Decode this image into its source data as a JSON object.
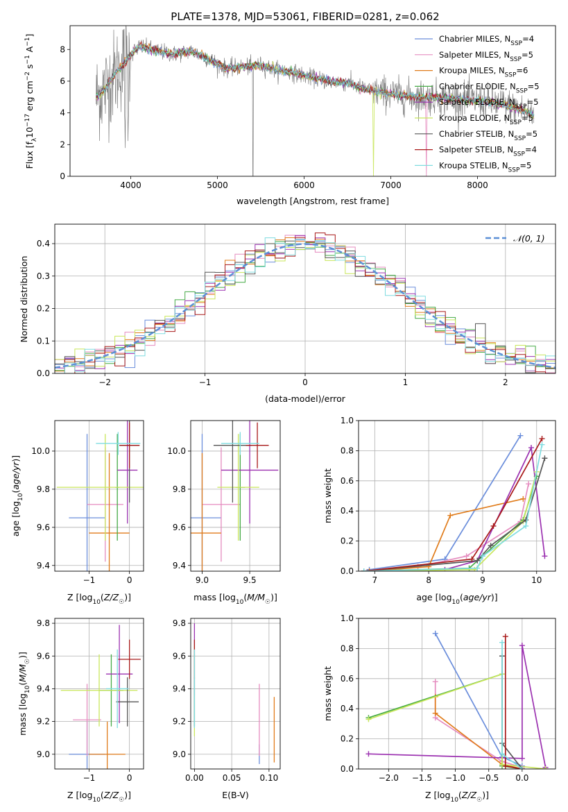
{
  "figure": {
    "title": "PLATE=1378, MJD=53061, FIBERID=0281, z=0.062"
  },
  "colors": {
    "Chabrier MILES": "#6a8ddb",
    "Salpeter MILES": "#e58bbf",
    "Kroupa MILES": "#e07b1a",
    "Chabrier ELODIE": "#44aa44",
    "Salpeter ELODIE": "#9b30b0",
    "Kroupa ELODIE": "#c8e65a",
    "Chabrier STELIB": "#555555",
    "Salpeter STELIB": "#a81818",
    "Kroupa STELIB": "#7fdce0",
    "data": "#808080",
    "normal": "#5b8fd6"
  },
  "chart_data": [
    {
      "id": "spectrum",
      "type": "line",
      "xlabel": "wavelength [Angstrom, rest frame]",
      "ylabel": "Flux [f_λ10^-17 erg cm^-2 s^-1 A^-1]",
      "xlim": [
        3300,
        8900
      ],
      "ylim": [
        0,
        9.5
      ],
      "xticks": [
        4000,
        5000,
        6000,
        7000,
        8000
      ],
      "yticks": [
        0,
        2,
        4,
        6,
        8
      ],
      "grid": false,
      "legend": {
        "position": "top-right",
        "entries": [
          {
            "label": "Chabrier MILES, N",
            "sub": "SSP",
            "suffix": "=4",
            "model": "Chabrier MILES"
          },
          {
            "label": "Salpeter MILES, N",
            "sub": "SSP",
            "suffix": "=5",
            "model": "Salpeter MILES"
          },
          {
            "label": "Kroupa MILES, N",
            "sub": "SSP",
            "suffix": "=6",
            "model": "Kroupa MILES"
          },
          {
            "label": "Chabrier ELODIE, N",
            "sub": "SSP",
            "suffix": "=5",
            "model": "Chabrier ELODIE"
          },
          {
            "label": "Salpeter ELODIE, N",
            "sub": "SSP",
            "suffix": "=5",
            "model": "Salpeter ELODIE"
          },
          {
            "label": "Kroupa ELODIE, N",
            "sub": "SSP",
            "suffix": "=5",
            "model": "Kroupa ELODIE"
          },
          {
            "label": "Chabrier STELIB, N",
            "sub": "SSP",
            "suffix": "=5",
            "model": "Chabrier STELIB"
          },
          {
            "label": "Salpeter STELIB, N",
            "sub": "SSP",
            "suffix": "=4",
            "model": "Salpeter STELIB"
          },
          {
            "label": "Kroupa STELIB, N",
            "sub": "SSP",
            "suffix": "=5",
            "model": "Kroupa STELIB"
          }
        ]
      },
      "continuum": {
        "x": [
          3600,
          3700,
          3800,
          3900,
          4000,
          4100,
          4300,
          4500,
          4700,
          4900,
          5100,
          5300,
          5500,
          5700,
          5900,
          6100,
          6300,
          6500,
          6700,
          6900,
          7100,
          7300,
          7500,
          7700,
          7900,
          8100,
          8300,
          8500,
          8650
        ],
        "y": [
          5.0,
          5.5,
          6.3,
          7.0,
          7.7,
          8.2,
          7.9,
          7.7,
          7.9,
          7.4,
          6.8,
          6.9,
          7.0,
          6.7,
          6.5,
          6.2,
          6.0,
          5.9,
          5.5,
          5.3,
          5.1,
          5.0,
          5.0,
          4.9,
          4.8,
          4.7,
          4.5,
          4.2,
          3.8
        ]
      }
    },
    {
      "id": "residuals",
      "type": "histogram",
      "xlabel": "(data-model)/error",
      "ylabel": "Normed distribution",
      "xlim": [
        -2.5,
        2.5
      ],
      "ylim": [
        0,
        0.46
      ],
      "xticks": [
        -2,
        -1,
        0,
        1,
        2
      ],
      "yticks": [
        0.0,
        0.1,
        0.2,
        0.3,
        0.4
      ],
      "grid": true,
      "legend": {
        "position": "top-right",
        "label": "𝒩(0, 1)"
      },
      "bin_width": 0.1,
      "curve": "normal(0,1)"
    },
    {
      "id": "z-age",
      "type": "errorbar",
      "xlabel": "Z [log10(Z/Z☉)]",
      "ylabel": "age  [log10(age/yr)]",
      "xlim": [
        -1.85,
        0.35
      ],
      "ylim": [
        9.37,
        10.16
      ],
      "xticks": [
        -1,
        0
      ],
      "yticks": [
        9.4,
        9.6,
        9.8,
        10.0
      ],
      "grid": true,
      "series": [
        {
          "model": "Chabrier MILES",
          "x": -1.05,
          "xerr": 0.45,
          "y": 9.65,
          "yerr": 0.44
        },
        {
          "model": "Salpeter MILES",
          "x": -0.6,
          "xerr": 0.45,
          "y": 9.72,
          "yerr": 0.3
        },
        {
          "model": "Kroupa MILES",
          "x": -0.5,
          "xerr": 0.5,
          "y": 9.57,
          "yerr": 0.42
        },
        {
          "model": "Chabrier ELODIE",
          "x": -0.3,
          "xerr": 0.05,
          "y": 9.81,
          "yerr": 0.28
        },
        {
          "model": "Salpeter ELODIE",
          "x": -0.05,
          "xerr": 0.25,
          "y": 9.9,
          "yerr": 0.28
        },
        {
          "model": "Kroupa ELODIE",
          "x": -0.6,
          "xerr": 1.2,
          "y": 9.81,
          "yerr": 0.28
        },
        {
          "model": "Chabrier STELIB",
          "x": 0.0,
          "xerr": 0.25,
          "y": 10.03,
          "yerr": 0.3
        },
        {
          "model": "Salpeter STELIB",
          "x": 0.0,
          "xerr": 0.25,
          "y": 10.03,
          "yerr": 0.12
        },
        {
          "model": "Kroupa STELIB",
          "x": -0.28,
          "xerr": 0.55,
          "y": 10.04,
          "yerr": 0.06
        }
      ]
    },
    {
      "id": "mass-age",
      "type": "errorbar",
      "xlabel": "mass [log10(M/M☉)]",
      "ylabel": "",
      "xlim": [
        8.88,
        9.82
      ],
      "ylim": [
        9.37,
        10.16
      ],
      "xticks": [
        9.0,
        9.5
      ],
      "yticks": [
        9.4,
        9.6,
        9.8,
        10.0
      ],
      "grid": true,
      "series": [
        {
          "model": "Chabrier MILES",
          "x": 9.0,
          "xerr": 0.2,
          "y": 9.65,
          "yerr": 0.44
        },
        {
          "model": "Salpeter MILES",
          "x": 9.2,
          "xerr": 0.2,
          "y": 9.72,
          "yerr": 0.3
        },
        {
          "model": "Kroupa MILES",
          "x": 9.0,
          "xerr": 0.2,
          "y": 9.57,
          "yerr": 0.42
        },
        {
          "model": "Chabrier ELODIE",
          "x": 9.4,
          "xerr": 0.05,
          "y": 9.81,
          "yerr": 0.28
        },
        {
          "model": "Salpeter ELODIE",
          "x": 9.5,
          "xerr": 0.3,
          "y": 9.9,
          "yerr": 0.28
        },
        {
          "model": "Kroupa ELODIE",
          "x": 9.38,
          "xerr": 0.22,
          "y": 9.81,
          "yerr": 0.28
        },
        {
          "model": "Chabrier STELIB",
          "x": 9.32,
          "xerr": 0.2,
          "y": 10.03,
          "yerr": 0.3
        },
        {
          "model": "Salpeter STELIB",
          "x": 9.58,
          "xerr": 0.12,
          "y": 10.03,
          "yerr": 0.12
        },
        {
          "model": "Kroupa STELIB",
          "x": 9.4,
          "xerr": 0.2,
          "y": 10.04,
          "yerr": 0.06
        }
      ]
    },
    {
      "id": "age-weight",
      "type": "line",
      "xlabel": "age  [log10(age/yr)]",
      "ylabel": "mass weight",
      "xlim": [
        6.7,
        10.35
      ],
      "ylim": [
        0,
        1.0
      ],
      "xticks": [
        7,
        8,
        9,
        10
      ],
      "yticks": [
        0.0,
        0.2,
        0.4,
        0.6,
        0.8,
        1.0
      ],
      "grid": true,
      "series": [
        {
          "model": "Chabrier MILES",
          "x": [
            6.9,
            8.3,
            9.7
          ],
          "y": [
            0.01,
            0.08,
            0.9
          ]
        },
        {
          "model": "Salpeter MILES",
          "x": [
            6.8,
            7.8,
            8.7,
            9.7,
            9.85
          ],
          "y": [
            0.0,
            0.03,
            0.1,
            0.33,
            0.58
          ]
        },
        {
          "model": "Kroupa MILES",
          "x": [
            6.9,
            8.0,
            8.4,
            9.75
          ],
          "y": [
            0.0,
            0.03,
            0.37,
            0.48
          ]
        },
        {
          "model": "Chabrier ELODIE",
          "x": [
            6.8,
            8.75,
            9.75,
            10.0
          ],
          "y": [
            0.0,
            0.02,
            0.34,
            0.63
          ]
        },
        {
          "model": "Salpeter ELODIE",
          "x": [
            6.8,
            8.3,
            8.9,
            9.9,
            10.15
          ],
          "y": [
            0.0,
            0.01,
            0.07,
            0.82,
            0.1
          ]
        },
        {
          "model": "Kroupa ELODIE",
          "x": [
            6.8,
            8.85,
            9.75,
            10.0
          ],
          "y": [
            0.0,
            0.01,
            0.33,
            0.66
          ]
        },
        {
          "model": "Chabrier STELIB",
          "x": [
            6.8,
            8.9,
            9.15,
            9.8,
            10.15
          ],
          "y": [
            0.0,
            0.07,
            0.17,
            0.34,
            0.75
          ]
        },
        {
          "model": "Salpeter STELIB",
          "x": [
            6.8,
            8.8,
            9.2,
            10.1
          ],
          "y": [
            0.0,
            0.08,
            0.3,
            0.88
          ]
        },
        {
          "model": "Kroupa STELIB",
          "x": [
            6.8,
            8.9,
            9.0,
            9.8,
            10.1
          ],
          "y": [
            0.0,
            0.02,
            0.1,
            0.3,
            0.84
          ]
        }
      ]
    },
    {
      "id": "z-mass",
      "type": "errorbar",
      "xlabel": "Z [log10(Z/Z☉)]",
      "ylabel": "mass [log10(M/M☉)]",
      "xlim": [
        -1.85,
        0.35
      ],
      "ylim": [
        8.91,
        9.83
      ],
      "xticks": [
        -1,
        0
      ],
      "yticks": [
        9.0,
        9.2,
        9.4,
        9.6,
        9.8
      ],
      "grid": true,
      "series": [
        {
          "model": "Chabrier MILES",
          "x": -1.05,
          "xerr": 0.45,
          "y": 9.0,
          "yerr": 0.2
        },
        {
          "model": "Salpeter MILES",
          "x": -1.05,
          "xerr": 0.35,
          "y": 9.21,
          "yerr": 0.22
        },
        {
          "model": "Kroupa MILES",
          "x": -0.55,
          "xerr": 0.45,
          "y": 9.0,
          "yerr": 0.2
        },
        {
          "model": "Chabrier ELODIE",
          "x": -0.45,
          "xerr": 0.3,
          "y": 9.39,
          "yerr": 0.22
        },
        {
          "model": "Salpeter ELODIE",
          "x": -0.25,
          "xerr": 0.33,
          "y": 9.49,
          "yerr": 0.3
        },
        {
          "model": "Kroupa ELODIE",
          "x": -0.75,
          "xerr": 0.95,
          "y": 9.39,
          "yerr": 0.22
        },
        {
          "model": "Chabrier STELIB",
          "x": -0.05,
          "xerr": 0.28,
          "y": 9.32,
          "yerr": 0.15
        },
        {
          "model": "Salpeter STELIB",
          "x": 0.0,
          "xerr": 0.28,
          "y": 9.58,
          "yerr": 0.12
        },
        {
          "model": "Kroupa STELIB",
          "x": -0.3,
          "xerr": 0.28,
          "y": 9.4,
          "yerr": 0.24
        }
      ]
    },
    {
      "id": "ebv-mass",
      "type": "errorbar",
      "xlabel": "E(B-V)",
      "ylabel": "",
      "xlim": [
        -0.005,
        0.115
      ],
      "ylim": [
        8.91,
        9.83
      ],
      "xticks": [
        0.0,
        0.05,
        0.1
      ],
      "xticklabels": [
        "0.00",
        "0.05",
        "0.10"
      ],
      "yticks": [
        9.0,
        9.2,
        9.4,
        9.6,
        9.8
      ],
      "grid": true,
      "series": [
        {
          "model": "Chabrier MILES",
          "x": 0.087,
          "xerr": 0,
          "y": 9.0,
          "yerr": 0.06
        },
        {
          "model": "Salpeter MILES",
          "x": 0.087,
          "xerr": 0,
          "y": 9.21,
          "yerr": 0.22
        },
        {
          "model": "Kroupa MILES",
          "x": 0.107,
          "xerr": 0,
          "y": 9.15,
          "yerr": 0.2
        },
        {
          "model": "Chabrier ELODIE",
          "x": 0.0,
          "xerr": 0,
          "y": 9.39,
          "yerr": 0.22
        },
        {
          "model": "Salpeter ELODIE",
          "x": 0.0,
          "xerr": 0,
          "y": 9.58,
          "yerr": 0.22
        },
        {
          "model": "Kroupa ELODIE",
          "x": 0.0,
          "xerr": 0,
          "y": 9.39,
          "yerr": 0.28
        },
        {
          "model": "Chabrier STELIB",
          "x": 0.0,
          "xerr": 0,
          "y": 9.32,
          "yerr": 0.15
        },
        {
          "model": "Salpeter STELIB",
          "x": 0.0,
          "xerr": 0,
          "y": 9.58,
          "yerr": 0.12
        },
        {
          "model": "Kroupa STELIB",
          "x": 0.0,
          "xerr": 0,
          "y": 9.4,
          "yerr": 0.24
        }
      ]
    },
    {
      "id": "z-weight",
      "type": "line",
      "xlabel": "Z [log10(Z/Z☉)]",
      "ylabel": "mass weight",
      "xlim": [
        -2.45,
        0.5
      ],
      "ylim": [
        0,
        1.0
      ],
      "xticks": [
        -2.0,
        -1.5,
        -1.0,
        -0.5,
        0.0
      ],
      "xticklabels": [
        "−2.0",
        "−1.5",
        "−1.0",
        "−0.5",
        "0.0"
      ],
      "yticks": [
        0.0,
        0.2,
        0.4,
        0.6,
        0.8,
        1.0
      ],
      "grid": true,
      "series": [
        {
          "model": "Chabrier MILES",
          "x": [
            -1.3,
            -0.3,
            0.0
          ],
          "y": [
            0.9,
            0.08,
            0.02
          ]
        },
        {
          "model": "Salpeter MILES",
          "x": [
            -1.3,
            -1.3,
            -0.3,
            0.0
          ],
          "y": [
            0.58,
            0.34,
            0.05,
            0.01
          ]
        },
        {
          "model": "Kroupa MILES",
          "x": [
            -1.3,
            -1.3,
            -0.3,
            0.0
          ],
          "y": [
            0.48,
            0.37,
            0.03,
            0.0
          ]
        },
        {
          "model": "Chabrier ELODIE",
          "x": [
            -2.3,
            -0.3,
            -0.3,
            0.0
          ],
          "y": [
            0.34,
            0.63,
            0.02,
            0.0
          ]
        },
        {
          "model": "Salpeter ELODIE",
          "x": [
            -2.3,
            0.0,
            0.0,
            0.35
          ],
          "y": [
            0.1,
            0.07,
            0.82,
            0.01
          ]
        },
        {
          "model": "Kroupa ELODIE",
          "x": [
            -2.3,
            -0.3,
            -0.3,
            0.35
          ],
          "y": [
            0.33,
            0.63,
            0.03,
            0.0
          ]
        },
        {
          "model": "Chabrier STELIB",
          "x": [
            -0.3,
            -0.3,
            0.0
          ],
          "y": [
            0.75,
            0.17,
            0.0
          ]
        },
        {
          "model": "Salpeter STELIB",
          "x": [
            -0.25,
            -0.25,
            0.0
          ],
          "y": [
            0.88,
            0.02,
            0.0
          ]
        },
        {
          "model": "Kroupa STELIB",
          "x": [
            -0.3,
            -0.3,
            0.0
          ],
          "y": [
            0.84,
            0.1,
            0.0
          ]
        }
      ]
    }
  ]
}
